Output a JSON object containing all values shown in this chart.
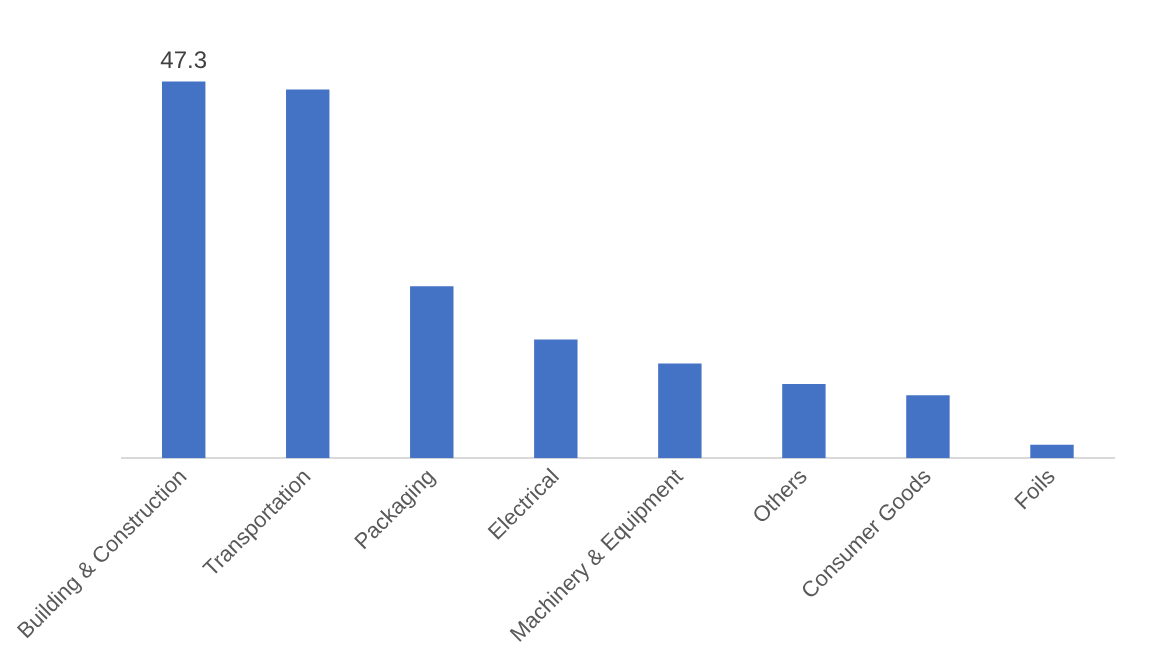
{
  "chart_data": {
    "type": "bar",
    "categories": [
      "Building & Construction",
      "Transportation",
      "Packaging",
      "Electrical",
      "Machinery & Equipment",
      "Others",
      "Consumer Goods",
      "Foils"
    ],
    "values": [
      47.3,
      46.3,
      21.6,
      14.9,
      11.9,
      9.3,
      7.9,
      1.7
    ],
    "value_labels": [
      "47.3",
      null,
      null,
      null,
      null,
      null,
      null,
      null
    ],
    "color": "#4472c4",
    "grid": false,
    "legend": false
  }
}
